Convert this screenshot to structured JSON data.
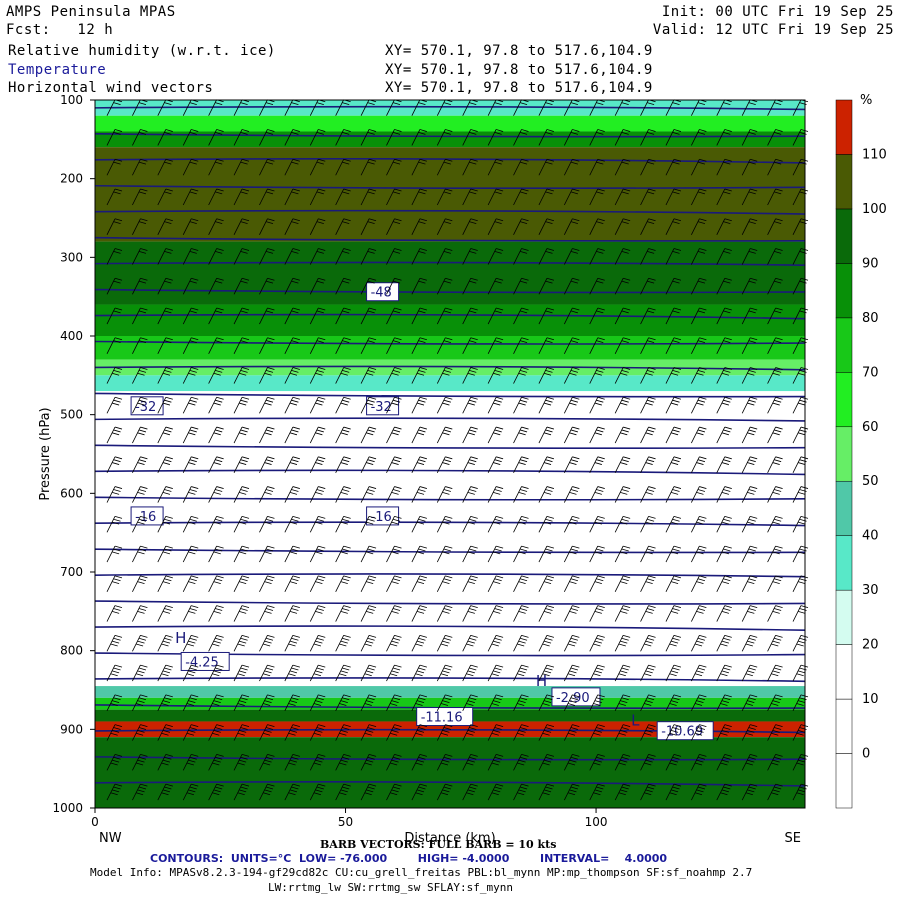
{
  "header": {
    "model": "AMPS Peninsula MPAS",
    "fcst": "Fcst:   12 h",
    "init": "Init: 00 UTC Fri 19 Sep 25",
    "valid": "Valid: 12 UTC Fri 19 Sep 25",
    "fields": [
      {
        "label": "Relative humidity (w.r.t. ice)",
        "xy": "XY= 570.1, 97.8 to 517.6,104.9",
        "color": "#000000"
      },
      {
        "label": "Temperature",
        "xy": "XY= 570.1, 97.8 to 517.6,104.9",
        "color": "#1a1a9a"
      },
      {
        "label": "Horizontal wind vectors",
        "xy": "XY= 570.1, 97.8 to 517.6,104.9",
        "color": "#000000"
      }
    ]
  },
  "chart_data": {
    "type": "heatmap",
    "ylabel": "Pressure (hPa)",
    "xlabel": "Distance (km)",
    "x_ticks": [
      0,
      50,
      100
    ],
    "y_ticks": [
      100,
      200,
      300,
      400,
      500,
      600,
      700,
      800,
      900,
      1000
    ],
    "xlim": [
      0,
      141.7
    ],
    "ylim": [
      1000,
      100
    ],
    "left_end_label": "NW",
    "right_end_label": "SE",
    "colorbar": {
      "unit": "%",
      "levels": [
        0,
        10,
        20,
        30,
        40,
        50,
        60,
        70,
        80,
        90,
        100,
        110
      ],
      "colors": [
        "#ffffff",
        "#ffffff",
        "#ffffff",
        "#d4fcf0",
        "#58e8c8",
        "#50c8a8",
        "#66ee66",
        "#22ee22",
        "#18c818",
        "#089008",
        "#0a6a0a",
        "#4a5a04",
        "#cc2200"
      ]
    },
    "rh_layers": [
      {
        "p_top": 100,
        "p_bot": 120,
        "rh": 30
      },
      {
        "p_top": 120,
        "p_bot": 140,
        "rh": 60
      },
      {
        "p_top": 140,
        "p_bot": 160,
        "rh": 80
      },
      {
        "p_top": 160,
        "p_bot": 280,
        "rh": 100
      },
      {
        "p_top": 280,
        "p_bot": 360,
        "rh": 90
      },
      {
        "p_top": 360,
        "p_bot": 400,
        "rh": 80
      },
      {
        "p_top": 400,
        "p_bot": 430,
        "rh": 70
      },
      {
        "p_top": 430,
        "p_bot": 450,
        "rh": 50
      },
      {
        "p_top": 450,
        "p_bot": 470,
        "rh": 30
      },
      {
        "p_top": 845,
        "p_bot": 860,
        "rh": 40
      },
      {
        "p_top": 860,
        "p_bot": 875,
        "rh": 70
      },
      {
        "p_top": 875,
        "p_bot": 890,
        "rh": 90
      },
      {
        "p_top": 890,
        "p_bot": 910,
        "rh": 110
      },
      {
        "p_top": 910,
        "p_bot": 1000,
        "rh": 90
      }
    ],
    "temperature_contours": {
      "units": "°C",
      "low": -76.0,
      "high": -4.0,
      "interval": 4.0,
      "labels": [
        {
          "text": "-48",
          "x": 55,
          "p": 345
        },
        {
          "text": "-32",
          "x": 8,
          "p": 490
        },
        {
          "text": "-32",
          "x": 55,
          "p": 490
        },
        {
          "text": "-16",
          "x": 8,
          "p": 630
        },
        {
          "text": "-16",
          "x": 55,
          "p": 630
        },
        {
          "text": "-4.25",
          "x": 18,
          "p": 815
        },
        {
          "text": "-11.16",
          "x": 65,
          "p": 885
        },
        {
          "text": "-2.90",
          "x": 92,
          "p": 860
        },
        {
          "text": "-10.69",
          "x": 113,
          "p": 903
        }
      ],
      "highs": [
        {
          "text": "H",
          "x": 16,
          "p": 790
        },
        {
          "text": "H",
          "x": 88,
          "p": 845
        }
      ],
      "lows": [
        {
          "text": "L",
          "x": 107,
          "p": 895
        }
      ]
    },
    "wind_barbs": {
      "full_barb_kts": 10,
      "columns": 28,
      "rows": 24
    }
  },
  "footer": {
    "barb_note": "BARB VECTORS: FULL BARB = 10 kts",
    "contours_note": "CONTOURS:  UNITS=°C  LOW= -76.000        HIGH= -4.0000        INTERVAL=    4.0000",
    "model_info": "Model Info: MPASv8.2.3-194-gf29cd82c CU:cu_grell_freitas PBL:bl_mynn MP:mp_thompson SF:sf_noahmp 2.7",
    "model_info2": "LW:rrtmg_lw SW:rrtmg_sw SFLAY:sf_mynn"
  }
}
